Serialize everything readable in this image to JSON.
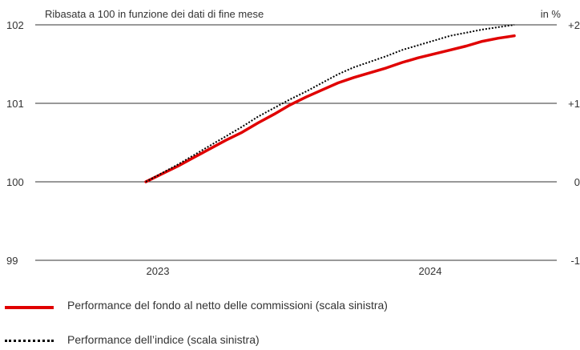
{
  "chart_data": {
    "type": "line",
    "subtitle": "Ribasata a 100 in funzione dei dati di fine mese",
    "right_axis_unit": "in %",
    "x": [
      "2023-01",
      "2023-02",
      "2023-03",
      "2023-04",
      "2023-05",
      "2023-06",
      "2023-07",
      "2023-08",
      "2023-09",
      "2023-10",
      "2023-11",
      "2023-12",
      "2024-01",
      "2024-02",
      "2024-03",
      "2024-04",
      "2024-05",
      "2024-06",
      "2024-07",
      "2024-08",
      "2024-09",
      "2024-10",
      "2024-11",
      "2024-12"
    ],
    "x_tick_labels": [
      {
        "label": "2023",
        "x": "2023-01"
      },
      {
        "label": "2024",
        "x": "2024-06"
      }
    ],
    "ylim": [
      99,
      102
    ],
    "y_ticks_left": [
      "99",
      "100",
      "101",
      "102"
    ],
    "y_ticks_right": [
      "-1",
      "0",
      "+1",
      "+2"
    ],
    "grid": "horizontal",
    "legend_position": "bottom",
    "series": [
      {
        "name": "Performance del fondo al netto delle commissioni (scala sinistra)",
        "color": "#e00000",
        "style": "solid",
        "values": [
          100.0,
          100.1,
          100.2,
          100.31,
          100.42,
          100.53,
          100.63,
          100.75,
          100.86,
          100.98,
          101.08,
          101.17,
          101.26,
          101.33,
          101.39,
          101.45,
          101.52,
          101.58,
          101.63,
          101.68,
          101.73,
          101.79,
          101.83,
          101.86
        ]
      },
      {
        "name": "Performance dell’indice (scala sinistra)",
        "color": "#000000",
        "style": "dotted",
        "values": [
          100.0,
          100.11,
          100.22,
          100.34,
          100.46,
          100.58,
          100.7,
          100.83,
          100.94,
          101.05,
          101.15,
          101.26,
          101.37,
          101.46,
          101.53,
          101.6,
          101.68,
          101.74,
          101.8,
          101.86,
          101.9,
          101.94,
          101.97,
          102.0
        ]
      }
    ]
  }
}
